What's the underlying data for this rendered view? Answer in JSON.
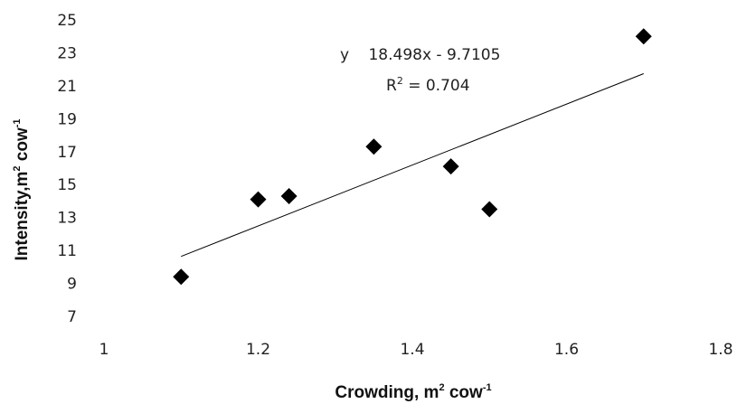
{
  "chart_data": {
    "type": "scatter",
    "title": "",
    "xlabel": "Crowding, m",
    "xlabel_sup": "2",
    "xlabel_mid": " cow",
    "xlabel_sup2": "-1",
    "ylabel": "Intensity,m",
    "ylabel_sup": "2",
    "ylabel_mid": " cow",
    "ylabel_sup2": "-1",
    "xlim": [
      1,
      1.8
    ],
    "ylim": [
      7,
      25
    ],
    "x_ticks": [
      1,
      1.2,
      1.4,
      1.6,
      1.8
    ],
    "x_tick_labels": [
      "1",
      "1.2",
      "1.4",
      "1.6",
      "1.8"
    ],
    "y_ticks": [
      7,
      9,
      11,
      13,
      15,
      17,
      19,
      21,
      23,
      25
    ],
    "y_tick_labels": [
      "7",
      "9",
      "11",
      "13",
      "15",
      "17",
      "19",
      "21",
      "23",
      "25"
    ],
    "grid": false,
    "legend": "none",
    "marker": "diamond",
    "marker_color": "#000000",
    "series": [
      {
        "x": [
          1.1,
          1.2,
          1.24,
          1.35,
          1.45,
          1.5,
          1.7
        ],
        "y": [
          9.4,
          14.1,
          14.3,
          17.3,
          16.1,
          13.5,
          24.0
        ]
      }
    ],
    "trendline": {
      "type": "linear",
      "slope": 18.498,
      "intercept": -9.7105,
      "x_range": [
        1.1,
        1.7
      ],
      "color": "#000000"
    },
    "annotations": {
      "equation_y": "y",
      "equation_rest": "18.498x - 9.7105",
      "r2_label": "R",
      "r2_sup": "2",
      "r2_value": " = 0.704"
    }
  }
}
